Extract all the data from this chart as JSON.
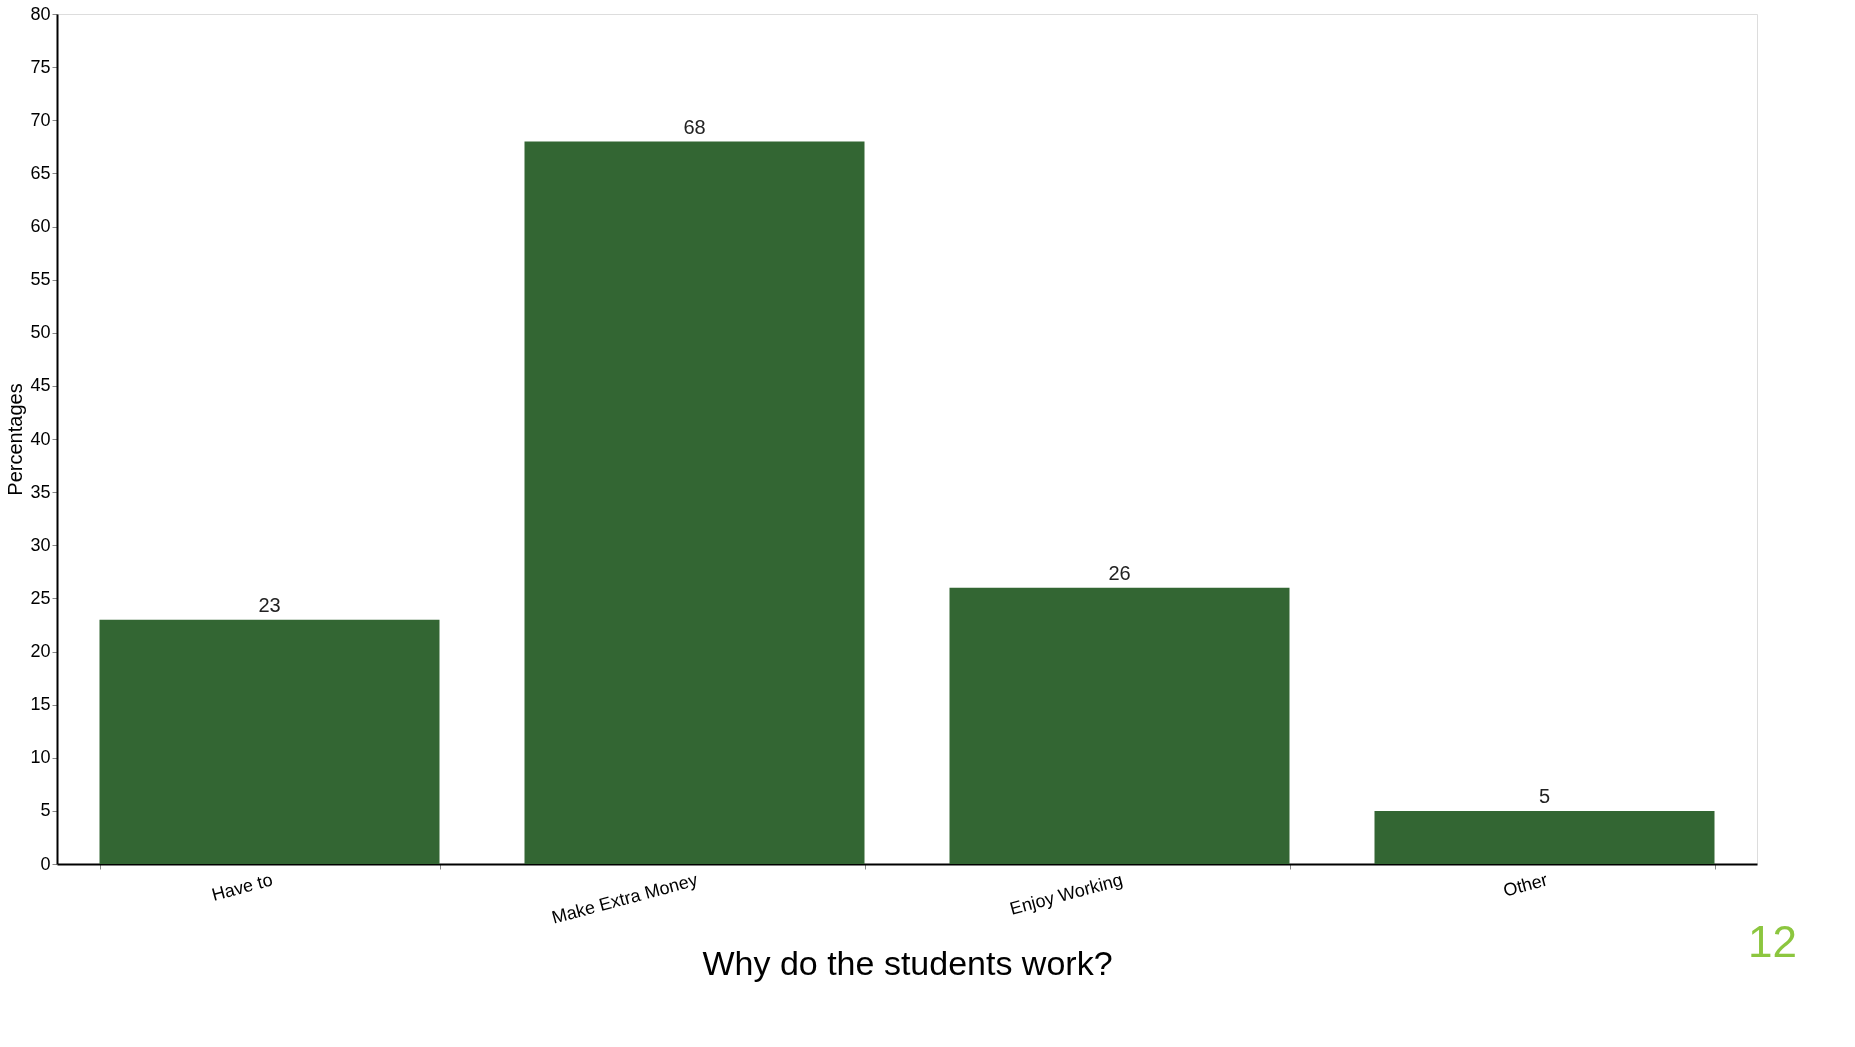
{
  "chart_data": {
    "type": "bar",
    "xlabel": "Why do the students work?",
    "ylabel": "Percentages",
    "categories": [
      "Have to",
      "Make Extra Money",
      "Enjoy Working",
      "Other"
    ],
    "values": [
      23,
      68,
      26,
      5
    ],
    "color": "#336633",
    "ylim": [
      0,
      80
    ],
    "yticks": [
      0,
      5,
      10,
      15,
      20,
      25,
      30,
      35,
      40,
      45,
      50,
      55,
      60,
      65,
      70,
      75,
      80
    ],
    "data_labels": true,
    "grid": false,
    "annotations": [
      "12"
    ]
  }
}
